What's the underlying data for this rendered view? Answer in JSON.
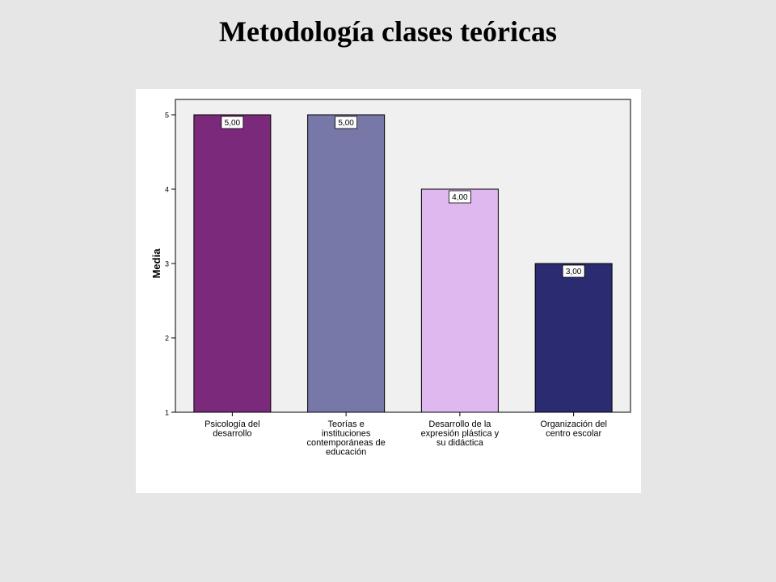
{
  "title": "Metodología clases teóricas",
  "chart_data": {
    "type": "bar",
    "title": "Metodología clases teóricas",
    "xlabel": "",
    "ylabel": "Media",
    "ylim": [
      1,
      5
    ],
    "yticks": [
      "1",
      "2",
      "3",
      "4",
      "5"
    ],
    "grid": false,
    "categories": [
      [
        "Psicología del",
        "desarrollo"
      ],
      [
        "Teorías e",
        "instituciones",
        "contemporáneas de",
        "educación"
      ],
      [
        "Desarrollo de la",
        "expresión plástica y",
        "su didáctica"
      ],
      [
        "Organización del",
        "centro escolar"
      ]
    ],
    "values": [
      5,
      5,
      4,
      3
    ],
    "value_labels": [
      "5,00",
      "5,00",
      "4,00",
      "3,00"
    ],
    "colors": [
      "#7b2a7b",
      "#7878a8",
      "#dfb8f0",
      "#2b2b72"
    ],
    "plot_background": "#f0f0f0"
  }
}
